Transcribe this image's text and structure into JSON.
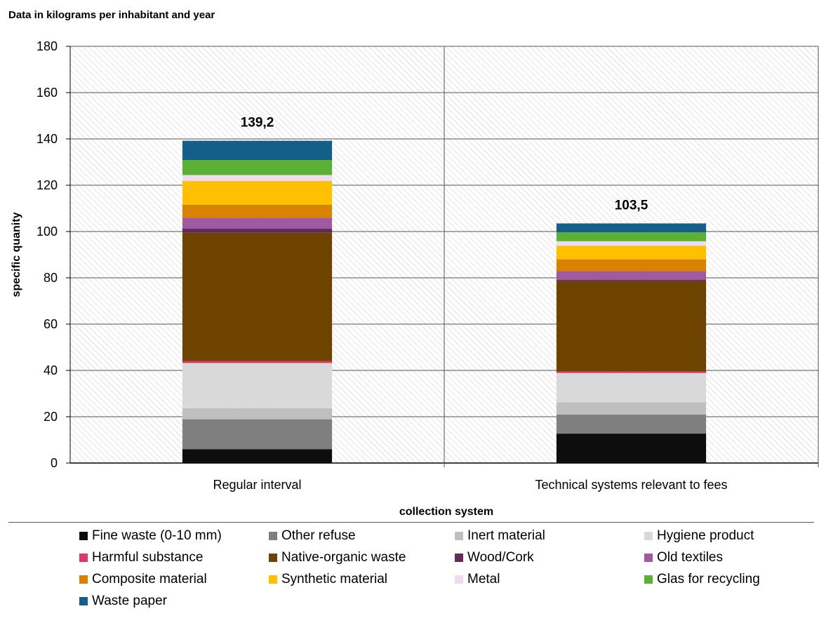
{
  "chart_data": {
    "type": "bar",
    "stacked": true,
    "title": "Data in kilograms per inhabitant and year",
    "xlabel": "collection system",
    "ylabel": "specific quanity",
    "ylim": [
      0,
      180
    ],
    "yticks": [
      0,
      20,
      40,
      60,
      80,
      100,
      120,
      140,
      160,
      180
    ],
    "grid": true,
    "legend_position": "bottom",
    "categories": [
      "Regular interval",
      "Technical systems relevant to fees"
    ],
    "totals": [
      "139,2",
      "103,5"
    ],
    "series": [
      {
        "name": "Fine waste (0-10 mm)",
        "color": "#0d0d0d",
        "values": [
          6.0,
          12.7
        ]
      },
      {
        "name": "Other refuse",
        "color": "#7f7f7f",
        "values": [
          12.9,
          8.2
        ]
      },
      {
        "name": "Inert material",
        "color": "#bfbfbf",
        "values": [
          4.8,
          5.3
        ]
      },
      {
        "name": "Hygiene product",
        "color": "#d9d9d9",
        "values": [
          19.5,
          12.7
        ]
      },
      {
        "name": "Harmful substance",
        "color": "#e2336b",
        "values": [
          0.8,
          0.6
        ]
      },
      {
        "name": "Native-organic waste",
        "color": "#6e4300",
        "values": [
          55.5,
          39.1
        ]
      },
      {
        "name": "Wood/Cork",
        "color": "#632b58",
        "values": [
          1.7,
          0.6
        ]
      },
      {
        "name": "Old textiles",
        "color": "#a05aa0",
        "values": [
          4.8,
          3.7
        ]
      },
      {
        "name": "Composite material",
        "color": "#d98200",
        "values": [
          5.6,
          5.1
        ]
      },
      {
        "name": "Synthetic material",
        "color": "#ffc000",
        "values": [
          10.2,
          5.8
        ]
      },
      {
        "name": "Metal",
        "color": "#ecdcec",
        "values": [
          2.6,
          2.0
        ]
      },
      {
        "name": "Glas for recycling",
        "color": "#5cb035",
        "values": [
          6.5,
          3.9
        ]
      },
      {
        "name": "Waste paper",
        "color": "#135f8a",
        "values": [
          8.3,
          3.8
        ]
      }
    ]
  }
}
